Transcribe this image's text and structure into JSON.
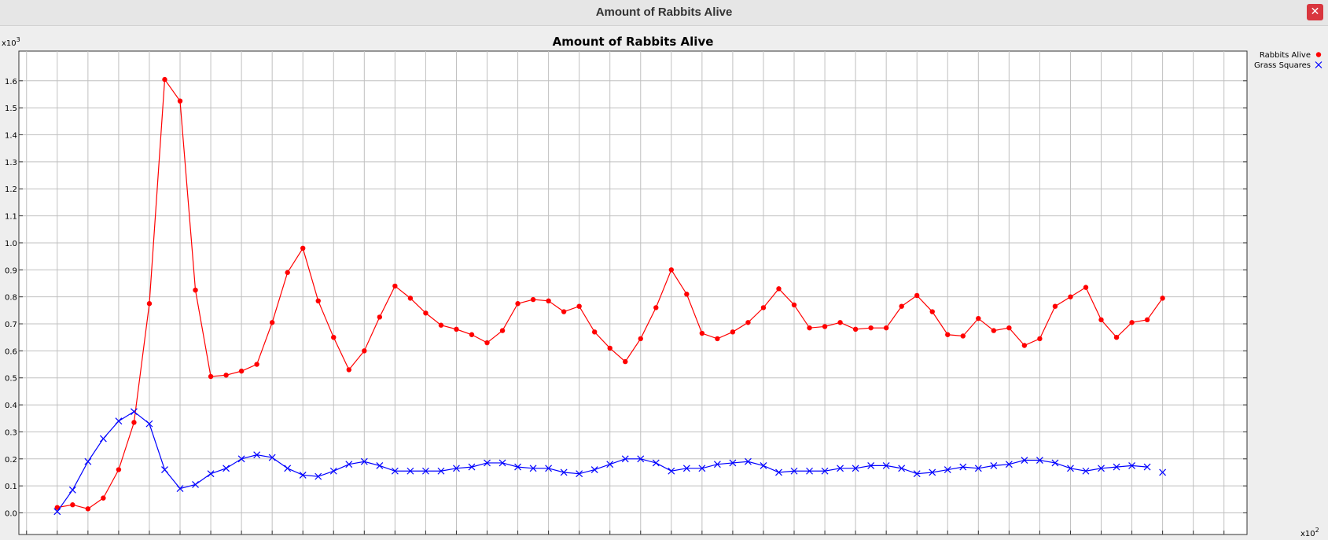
{
  "window": {
    "title": "Amount of Rabbits Alive",
    "close_glyph": "✕",
    "close_icon": "close-icon"
  },
  "chart_data": {
    "type": "line",
    "title": "Amount of Rabbits Alive",
    "xlabel": "",
    "ylabel": "",
    "x_multiplier_label": "x10",
    "x_multiplier_exp": "2",
    "y_multiplier_label": "x10",
    "y_multiplier_exp": "3",
    "xlim": [
      -0.25,
      7.75
    ],
    "ylim": [
      -0.08,
      1.71
    ],
    "x_ticks": [
      "-0.2",
      "0.0",
      "0.2",
      "0.4",
      "0.6",
      "0.8",
      "1.0",
      "1.2",
      "1.4",
      "1.6",
      "1.8",
      "2.0",
      "2.2",
      "2.4",
      "2.6",
      "2.8",
      "3.0",
      "3.2",
      "3.4",
      "3.6",
      "3.8",
      "4.0",
      "4.2",
      "4.4",
      "4.6",
      "4.8",
      "5.0",
      "5.2",
      "5.4",
      "5.6",
      "5.8",
      "6.0",
      "6.2",
      "6.4",
      "6.6",
      "6.8",
      "7.0",
      "7.2",
      "7.4",
      "7.6"
    ],
    "y_ticks": [
      "0.0",
      "0.1",
      "0.2",
      "0.3",
      "0.4",
      "0.5",
      "0.6",
      "0.7",
      "0.8",
      "0.9",
      "1.0",
      "1.1",
      "1.2",
      "1.3",
      "1.4",
      "1.5",
      "1.6"
    ],
    "grid": true,
    "legend_position": "top-right",
    "x": [
      0.0,
      0.1,
      0.2,
      0.3,
      0.4,
      0.5,
      0.6,
      0.7,
      0.8,
      0.9,
      1.0,
      1.1,
      1.2,
      1.3,
      1.4,
      1.5,
      1.6,
      1.7,
      1.8,
      1.9,
      2.0,
      2.1,
      2.2,
      2.3,
      2.4,
      2.5,
      2.6,
      2.7,
      2.8,
      2.9,
      3.0,
      3.1,
      3.2,
      3.3,
      3.4,
      3.5,
      3.6,
      3.7,
      3.8,
      3.9,
      4.0,
      4.1,
      4.2,
      4.3,
      4.4,
      4.5,
      4.6,
      4.7,
      4.8,
      4.9,
      5.0,
      5.1,
      5.2,
      5.3,
      5.4,
      5.5,
      5.6,
      5.7,
      5.8,
      5.9,
      6.0,
      6.1,
      6.2,
      6.3,
      6.4,
      6.5,
      6.6,
      6.7,
      6.8,
      6.9,
      7.0,
      7.1,
      7.2
    ],
    "series": [
      {
        "name": "Rabbits Alive",
        "color": "#ff0000",
        "marker": "circle",
        "values": [
          0.02,
          0.03,
          0.015,
          0.055,
          0.16,
          0.335,
          0.775,
          1.605,
          1.525,
          0.825,
          0.505,
          0.51,
          0.525,
          0.55,
          0.705,
          0.89,
          0.98,
          0.785,
          0.65,
          0.53,
          0.6,
          0.725,
          0.84,
          0.795,
          0.74,
          0.695,
          0.68,
          0.66,
          0.63,
          0.675,
          0.775,
          0.79,
          0.785,
          0.745,
          0.765,
          0.67,
          0.61,
          0.56,
          0.645,
          0.76,
          0.9,
          0.81,
          0.665,
          0.645,
          0.67,
          0.705,
          0.76,
          0.83,
          0.77,
          0.685,
          0.69,
          0.705,
          0.68,
          0.685,
          0.685,
          0.765,
          0.805,
          0.745,
          0.66,
          0.655,
          0.72,
          0.675,
          0.685,
          0.62,
          0.645,
          0.765,
          0.8,
          0.835,
          0.715,
          0.65,
          0.705,
          0.715,
          0.795
        ]
      },
      {
        "name": "Grass Squares",
        "color": "#0000ff",
        "marker": "x",
        "connected_points": 72,
        "values": [
          0.005,
          0.085,
          0.19,
          0.275,
          0.34,
          0.375,
          0.33,
          0.16,
          0.09,
          0.105,
          0.145,
          0.165,
          0.2,
          0.215,
          0.205,
          0.165,
          0.14,
          0.135,
          0.155,
          0.18,
          0.19,
          0.175,
          0.155,
          0.155,
          0.155,
          0.155,
          0.165,
          0.17,
          0.185,
          0.185,
          0.17,
          0.165,
          0.165,
          0.15,
          0.145,
          0.16,
          0.18,
          0.2,
          0.2,
          0.185,
          0.155,
          0.165,
          0.165,
          0.18,
          0.185,
          0.19,
          0.175,
          0.15,
          0.155,
          0.155,
          0.155,
          0.165,
          0.165,
          0.175,
          0.175,
          0.165,
          0.145,
          0.15,
          0.16,
          0.17,
          0.165,
          0.175,
          0.18,
          0.195,
          0.195,
          0.185,
          0.165,
          0.155,
          0.165,
          0.17,
          0.175,
          0.17,
          0.15
        ]
      }
    ]
  }
}
